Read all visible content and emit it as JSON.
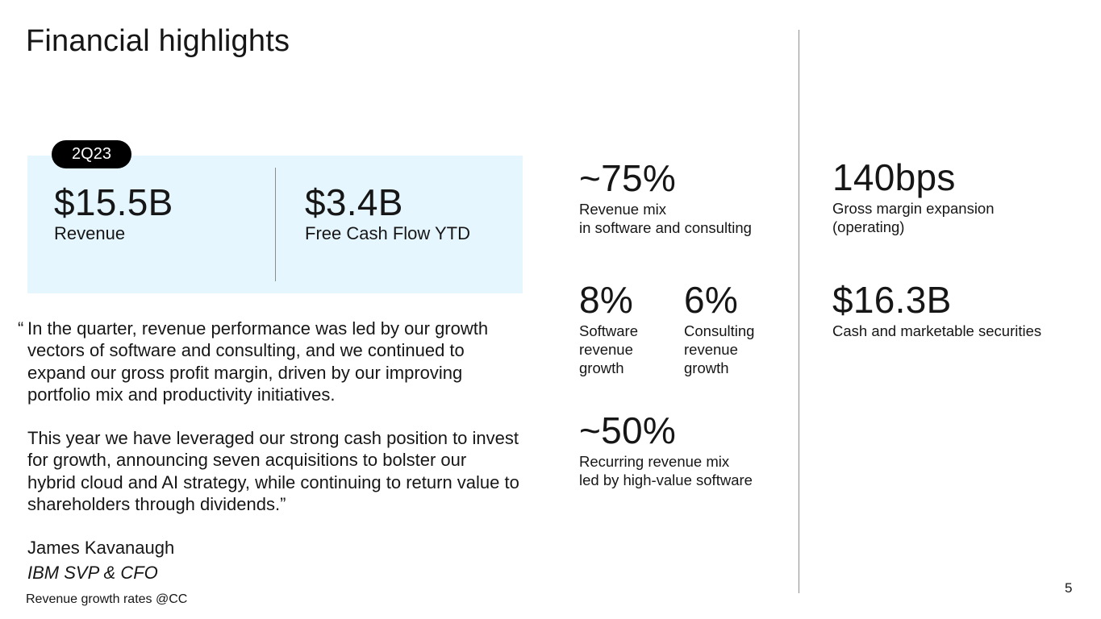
{
  "title": "Financial highlights",
  "badge": "2Q23",
  "panel": {
    "left": {
      "value": "$15.5B",
      "label": "Revenue"
    },
    "right": {
      "value": "$3.4B",
      "label": "Free Cash Flow YTD"
    }
  },
  "metrics": {
    "revenue_mix": {
      "value": "~75%",
      "line1": "Revenue mix",
      "line2": "in software and consulting"
    },
    "software_growth": {
      "value": "8%",
      "line1": "Software",
      "line2": "revenue",
      "line3": "growth"
    },
    "consulting_growth": {
      "value": "6%",
      "line1": "Consulting",
      "line2": "revenue",
      "line3": "growth"
    },
    "recurring": {
      "value": "~50%",
      "line1": "Recurring revenue mix",
      "line2": "led by high-value software"
    },
    "gross_margin": {
      "value": "140bps",
      "line1": "Gross margin expansion",
      "line2": "(operating)"
    },
    "cash": {
      "value": "$16.3B",
      "line1": "Cash and marketable securities"
    }
  },
  "quote": {
    "open_mark": "“",
    "p1": "In the quarter, revenue performance was led by our growth vectors of software and consulting, and we continued to expand our gross profit margin, driven by our improving portfolio mix and productivity initiatives.",
    "p2": "This year we have leveraged our strong cash position to invest for growth, announcing seven acquisitions to bolster our hybrid cloud and AI strategy, while continuing to return value to shareholders through dividends.”"
  },
  "speaker": {
    "name": "James Kavanaugh",
    "role": "IBM SVP & CFO"
  },
  "footnote": "Revenue growth rates @CC",
  "page_number": "5"
}
